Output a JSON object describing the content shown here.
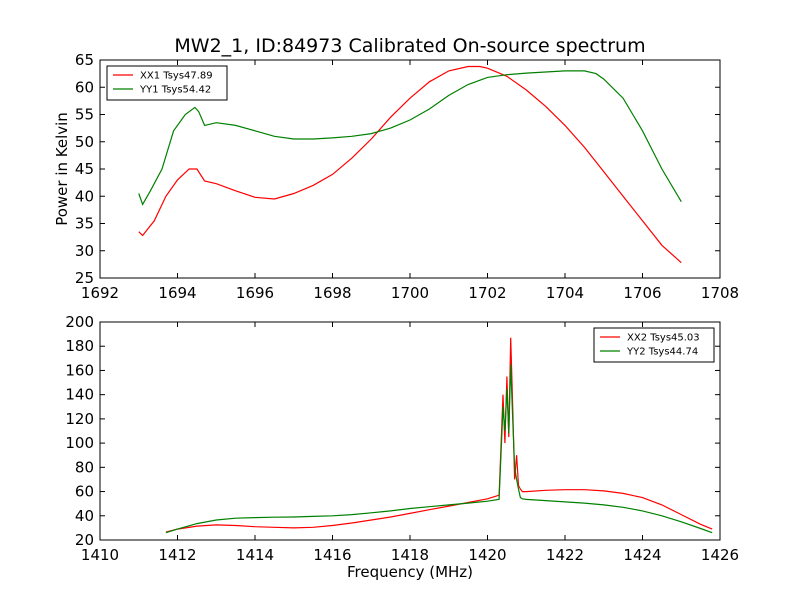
{
  "chart_data": [
    {
      "type": "line",
      "title": "MW2_1, ID:84973 Calibrated On-source spectrum",
      "xlabel": "",
      "ylabel": "Power in Kelvin",
      "xlim": [
        1692,
        1708
      ],
      "ylim": [
        25,
        65
      ],
      "xticks": [
        1692,
        1694,
        1696,
        1698,
        1700,
        1702,
        1704,
        1706,
        1708
      ],
      "yticks": [
        25,
        30,
        35,
        40,
        45,
        50,
        55,
        60,
        65
      ],
      "grid": false,
      "legend_position": "top-left",
      "series": [
        {
          "name": "XX1 Tsys47.89",
          "color": "#ff0000",
          "x": [
            1693.0,
            1693.1,
            1693.4,
            1693.7,
            1694.0,
            1694.3,
            1694.5,
            1694.7,
            1695.0,
            1695.5,
            1696.0,
            1696.5,
            1697.0,
            1697.5,
            1698.0,
            1698.5,
            1699.0,
            1699.5,
            1700.0,
            1700.5,
            1701.0,
            1701.5,
            1701.8,
            1702.0,
            1702.5,
            1703.0,
            1703.5,
            1704.0,
            1704.5,
            1705.0,
            1705.5,
            1706.0,
            1706.5,
            1707.0
          ],
          "y": [
            33.5,
            32.8,
            35.5,
            40.0,
            43.0,
            45.0,
            45.0,
            42.8,
            42.3,
            41.0,
            39.8,
            39.5,
            40.5,
            42.0,
            44.0,
            47.0,
            50.5,
            54.5,
            58.0,
            61.0,
            63.0,
            63.8,
            63.8,
            63.5,
            62.0,
            59.5,
            56.5,
            53.0,
            49.0,
            44.5,
            40.0,
            35.5,
            31.0,
            27.8
          ]
        },
        {
          "name": "YY1 Tsys54.42",
          "color": "#008000",
          "x": [
            1693.0,
            1693.1,
            1693.3,
            1693.6,
            1693.9,
            1694.2,
            1694.45,
            1694.55,
            1694.7,
            1695.0,
            1695.5,
            1696.0,
            1696.5,
            1697.0,
            1697.5,
            1698.0,
            1698.5,
            1699.0,
            1699.5,
            1700.0,
            1700.5,
            1701.0,
            1701.5,
            1702.0,
            1702.5,
            1703.0,
            1703.5,
            1704.0,
            1704.5,
            1704.8,
            1705.0,
            1705.5,
            1706.0,
            1706.5,
            1707.0
          ],
          "y": [
            40.5,
            38.5,
            41.0,
            45.0,
            52.0,
            55.0,
            56.3,
            55.5,
            53.0,
            53.5,
            53.0,
            52.0,
            51.0,
            50.5,
            50.5,
            50.7,
            51.0,
            51.5,
            52.5,
            54.0,
            56.0,
            58.5,
            60.5,
            61.8,
            62.3,
            62.6,
            62.8,
            63.0,
            63.0,
            62.5,
            61.5,
            58.0,
            52.0,
            45.0,
            39.0
          ]
        }
      ]
    },
    {
      "type": "line",
      "title": "",
      "xlabel": "Frequency (MHz)",
      "ylabel": "",
      "xlim": [
        1410,
        1426
      ],
      "ylim": [
        20,
        200
      ],
      "xticks": [
        1410,
        1412,
        1414,
        1416,
        1418,
        1420,
        1422,
        1424,
        1426
      ],
      "yticks": [
        20,
        40,
        60,
        80,
        100,
        120,
        140,
        160,
        180,
        200
      ],
      "grid": false,
      "legend_position": "top-right",
      "series": [
        {
          "name": "XX2 Tsys45.03",
          "color": "#ff0000",
          "x": [
            1411.7,
            1412.0,
            1412.5,
            1413.0,
            1413.5,
            1414.0,
            1414.5,
            1415.0,
            1415.5,
            1416.0,
            1416.5,
            1417.0,
            1417.5,
            1418.0,
            1418.5,
            1419.0,
            1419.5,
            1420.0,
            1420.3,
            1420.4,
            1420.45,
            1420.5,
            1420.55,
            1420.6,
            1420.65,
            1420.7,
            1420.75,
            1420.8,
            1420.85,
            1420.9,
            1421.0,
            1421.5,
            1422.0,
            1422.5,
            1423.0,
            1423.5,
            1424.0,
            1424.5,
            1425.0,
            1425.5,
            1425.8
          ],
          "y": [
            26.5,
            29.0,
            31.5,
            32.5,
            32.0,
            31.0,
            30.5,
            30.0,
            30.5,
            32.0,
            34.0,
            36.5,
            39.0,
            42.0,
            45.0,
            48.0,
            51.0,
            54.0,
            57.0,
            140.0,
            100.0,
            155.0,
            105.0,
            187.0,
            130.0,
            70.0,
            90.0,
            65.0,
            62.0,
            60.0,
            60.0,
            61.0,
            61.5,
            61.5,
            60.5,
            58.5,
            55.0,
            49.0,
            41.0,
            33.0,
            29.0
          ]
        },
        {
          "name": "YY2 Tsys44.74",
          "color": "#008000",
          "x": [
            1411.7,
            1412.0,
            1412.5,
            1413.0,
            1413.5,
            1414.0,
            1414.5,
            1415.0,
            1415.5,
            1416.0,
            1416.5,
            1417.0,
            1417.5,
            1418.0,
            1418.5,
            1419.0,
            1419.5,
            1420.0,
            1420.3,
            1420.4,
            1420.45,
            1420.5,
            1420.55,
            1420.6,
            1420.65,
            1420.7,
            1420.75,
            1420.8,
            1420.85,
            1420.9,
            1421.0,
            1421.5,
            1422.0,
            1422.5,
            1423.0,
            1423.5,
            1424.0,
            1424.5,
            1425.0,
            1425.5,
            1425.8
          ],
          "y": [
            26.0,
            29.0,
            33.5,
            36.5,
            38.0,
            38.5,
            38.8,
            39.0,
            39.5,
            40.0,
            41.0,
            42.5,
            44.0,
            46.0,
            47.5,
            49.0,
            50.5,
            52.0,
            53.5,
            130.0,
            110.0,
            145.0,
            108.0,
            165.0,
            120.0,
            80.0,
            70.0,
            62.0,
            55.0,
            54.0,
            53.5,
            52.5,
            51.5,
            50.5,
            49.0,
            47.0,
            44.0,
            40.0,
            35.0,
            29.5,
            26.0
          ]
        }
      ]
    }
  ]
}
